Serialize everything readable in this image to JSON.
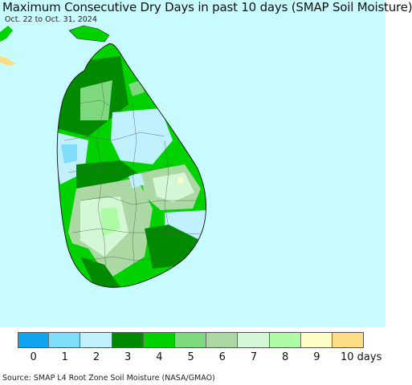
{
  "title": "Maximum Consecutive Dry Days in past 10 days (SMAP Soil Moisture)",
  "subtitle": "Oct. 22 to Oct. 31, 2024",
  "source": "Source: SMAP L4 Root Zone Soil Moisture (NASA/GMAO)",
  "legend": {
    "unit": "days",
    "items": [
      {
        "label": "0",
        "color": "#0ea4ef"
      },
      {
        "label": "1",
        "color": "#7fdcfb"
      },
      {
        "label": "2",
        "color": "#bff0fc"
      },
      {
        "label": "3",
        "color": "#008a00"
      },
      {
        "label": "4",
        "color": "#00d200"
      },
      {
        "label": "5",
        "color": "#7ed87e"
      },
      {
        "label": "6",
        "color": "#acd8a4"
      },
      {
        "label": "7",
        "color": "#d4f8d6"
      },
      {
        "label": "8",
        "color": "#aefca4"
      },
      {
        "label": "9",
        "color": "#fdfdc6"
      },
      {
        "label": "10 days",
        "color": "#fddc86"
      }
    ]
  },
  "map": {
    "background": "#c8fbfd",
    "region": "Sri Lanka"
  }
}
